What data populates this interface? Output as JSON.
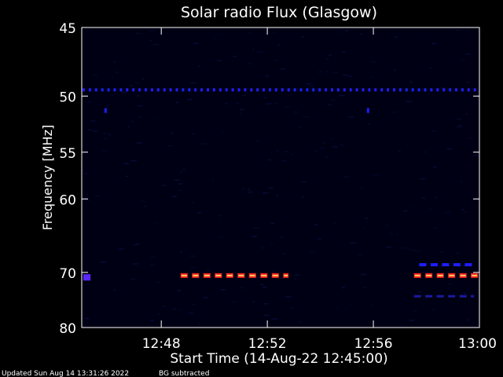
{
  "chart_data": {
    "type": "heatmap",
    "title": "Solar radio Flux (Glasgow)",
    "xlabel": "Start Time (14-Aug-22 12:45:00)",
    "ylabel": "Frequency [MHz]",
    "x_range": [
      "12:45",
      "13:00"
    ],
    "y_range_mhz": [
      45,
      80
    ],
    "y_ticks": [
      {
        "mhz": 45,
        "label": "45"
      },
      {
        "mhz": 50,
        "label": "50"
      },
      {
        "mhz": 55,
        "label": "55"
      },
      {
        "mhz": 60,
        "label": "60"
      },
      {
        "mhz": 70,
        "label": "70"
      },
      {
        "mhz": 80,
        "label": "80"
      }
    ],
    "x_ticks": [
      {
        "time": "12:48",
        "label": "12:48"
      },
      {
        "time": "12:52",
        "label": "12:52"
      },
      {
        "time": "12:56",
        "label": "12:56"
      },
      {
        "time": "13:00",
        "label": "13:00"
      }
    ],
    "colors": {
      "background": "#000000",
      "plot_background": "#000014",
      "axis": "#ffffff",
      "weak_emission": "#1e1eff",
      "strong_emission_core": "#ffd060",
      "strong_emission_edge": "#ff2020"
    },
    "emission_bands": [
      {
        "mhz": 49.5,
        "start": "12:45",
        "end": "13:00",
        "intensity": "medium",
        "pattern": "dashed"
      },
      {
        "mhz": 70.5,
        "start": "12:48.7",
        "end": "12:52.8",
        "intensity": "high",
        "pattern": "dashed"
      },
      {
        "mhz": 70.5,
        "start": "12:57.5",
        "end": "13:00",
        "intensity": "high",
        "pattern": "dashed"
      },
      {
        "mhz": 68.8,
        "start": "12:57.7",
        "end": "12:59.8",
        "intensity": "medium",
        "pattern": "dashed"
      },
      {
        "mhz": 74.0,
        "start": "12:57.5",
        "end": "12:59.8",
        "intensity": "low",
        "pattern": "dashed"
      },
      {
        "mhz": 70.8,
        "start": "12:45",
        "end": "12:45.3",
        "intensity": "medium",
        "pattern": "solid"
      }
    ],
    "emission_spots": [
      {
        "mhz": 51.2,
        "time": "12:45.9"
      },
      {
        "mhz": 51.2,
        "time": "12:55.8"
      }
    ],
    "footer_left": "Updated Sun Aug 14 13:31:26 2022",
    "footer_note": "BG subtracted"
  }
}
